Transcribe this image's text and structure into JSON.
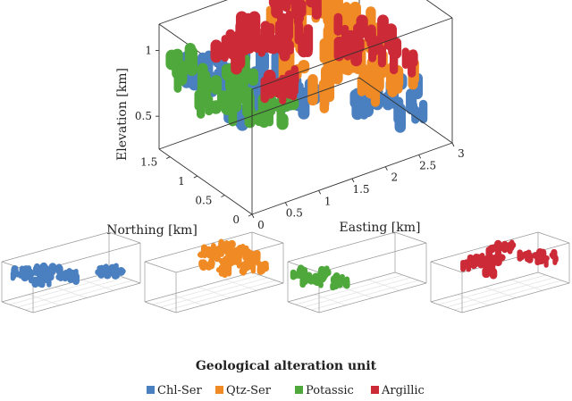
{
  "chart_data": {
    "type": "scatter",
    "subtype": "3d-voxel",
    "title": "",
    "axes": {
      "x": {
        "label": "Easting [km]",
        "ticks": [
          "0",
          "0.5",
          "1",
          "1.5",
          "2",
          "2.5",
          "3"
        ],
        "range": [
          0,
          3
        ]
      },
      "y": {
        "label": "Northing [km]",
        "ticks": [
          "0",
          "0.5",
          "1",
          "1.5"
        ],
        "range": [
          0,
          1.7
        ]
      },
      "z": {
        "label": "Elevation [km]",
        "ticks": [
          "0.5",
          "1"
        ],
        "range": [
          0.25,
          1.2
        ]
      }
    },
    "legend": {
      "title": "Geological alteration unit",
      "placement": "bottom"
    },
    "series": [
      {
        "name": "Chl-Ser",
        "color": "#4a7fc0",
        "points": [
          [
            0.3,
            1.4,
            0.9
          ],
          [
            0.5,
            1.3,
            0.85
          ],
          [
            0.7,
            1.2,
            0.9
          ],
          [
            0.9,
            1.1,
            0.8
          ],
          [
            1.1,
            1.0,
            0.85
          ],
          [
            0.6,
            0.9,
            0.7
          ],
          [
            0.8,
            0.8,
            0.75
          ],
          [
            1.3,
            0.9,
            0.7
          ],
          [
            1.5,
            0.8,
            0.65
          ],
          [
            2.4,
            0.5,
            0.6
          ],
          [
            2.6,
            0.4,
            0.55
          ],
          [
            2.2,
            0.6,
            0.6
          ]
        ]
      },
      {
        "name": "Qtz-Ser",
        "color": "#f08a24",
        "points": [
          [
            1.6,
            1.4,
            1.1
          ],
          [
            1.8,
            1.3,
            1.05
          ],
          [
            2.0,
            1.2,
            1.15
          ],
          [
            2.2,
            1.1,
            1.0
          ],
          [
            2.4,
            1.0,
            0.95
          ],
          [
            1.9,
            0.9,
            0.9
          ],
          [
            2.1,
            0.8,
            0.85
          ],
          [
            1.4,
            1.0,
            0.9
          ],
          [
            2.6,
            0.9,
            0.8
          ],
          [
            2.3,
            0.6,
            0.7
          ],
          [
            1.7,
            0.7,
            0.75
          ],
          [
            2.8,
            0.7,
            0.6
          ]
        ]
      },
      {
        "name": "Potassic",
        "color": "#4fa83b",
        "points": [
          [
            0.2,
            1.5,
            0.9
          ],
          [
            0.4,
            1.3,
            0.75
          ],
          [
            0.6,
            1.1,
            0.7
          ],
          [
            0.9,
            0.9,
            0.6
          ],
          [
            1.2,
            1.0,
            0.55
          ],
          [
            0.8,
            1.3,
            0.8
          ]
        ]
      },
      {
        "name": "Argillic",
        "color": "#cc2a36",
        "points": [
          [
            0.9,
            1.4,
            1.0
          ],
          [
            1.1,
            1.3,
            1.05
          ],
          [
            1.3,
            1.2,
            0.95
          ],
          [
            1.5,
            1.1,
            1.0
          ],
          [
            1.7,
            1.5,
            1.15
          ],
          [
            2.0,
            1.4,
            1.1
          ],
          [
            2.3,
            1.0,
            0.9
          ],
          [
            2.6,
            0.8,
            0.85
          ],
          [
            2.8,
            0.6,
            0.8
          ],
          [
            1.2,
            0.9,
            0.8
          ]
        ]
      }
    ]
  }
}
